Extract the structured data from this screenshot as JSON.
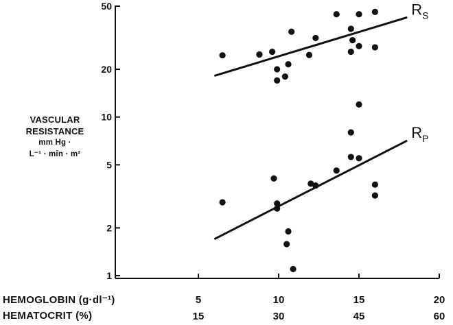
{
  "chart_data": {
    "type": "scatter",
    "title": "",
    "y_axis": {
      "scale": "log",
      "ylim": [
        1,
        50
      ],
      "ticks": [
        1,
        2,
        5,
        10,
        20,
        50
      ],
      "tick_labels": [
        "1",
        "2",
        "5",
        "10",
        "20",
        "50"
      ],
      "label_lines": [
        "VASCULAR",
        "RESISTANCE",
        "mm Hg ·",
        "L⁻¹ · min · m²"
      ]
    },
    "x_axes": [
      {
        "label": "HEMOGLOBIN (g·dl⁻¹)",
        "ticks": [
          5,
          10,
          15,
          20
        ],
        "tick_labels": [
          "5",
          "10",
          "15",
          "20"
        ],
        "xlim": [
          5,
          20
        ]
      },
      {
        "label": "HEMATOCRIT (%)",
        "ticks": [
          15,
          30,
          45,
          60
        ],
        "tick_labels": [
          "15",
          "30",
          "45",
          "60"
        ]
      }
    ],
    "grid": false,
    "series": [
      {
        "name": "Rs",
        "label_main": "R",
        "label_sub": "S",
        "points": [
          [
            6.5,
            24.5
          ],
          [
            8.8,
            24.8
          ],
          [
            9.6,
            25.8
          ],
          [
            9.9,
            20.0
          ],
          [
            9.9,
            17.0
          ],
          [
            10.4,
            18.0
          ],
          [
            10.6,
            21.5
          ],
          [
            10.8,
            34.5
          ],
          [
            11.9,
            24.6
          ],
          [
            12.3,
            31.5
          ],
          [
            13.6,
            44.5
          ],
          [
            14.5,
            36.0
          ],
          [
            14.5,
            25.8
          ],
          [
            14.6,
            30.5
          ],
          [
            15.0,
            44.5
          ],
          [
            15.0,
            28.0
          ],
          [
            16.0,
            46.0
          ],
          [
            16.0,
            27.5
          ]
        ],
        "fit_line": [
          [
            6.0,
            18.2
          ],
          [
            18.0,
            42.5
          ]
        ]
      },
      {
        "name": "Rp",
        "label_main": "R",
        "label_sub": "P",
        "points": [
          [
            6.5,
            2.9
          ],
          [
            9.7,
            4.1
          ],
          [
            9.9,
            2.85
          ],
          [
            9.9,
            2.65
          ],
          [
            10.5,
            1.58
          ],
          [
            10.6,
            1.9
          ],
          [
            10.9,
            1.1
          ],
          [
            12.0,
            3.8
          ],
          [
            12.3,
            3.7
          ],
          [
            13.6,
            4.6
          ],
          [
            14.5,
            8.0
          ],
          [
            14.5,
            5.6
          ],
          [
            15.0,
            12.0
          ],
          [
            15.0,
            5.5
          ],
          [
            16.0,
            3.75
          ],
          [
            16.0,
            3.2
          ]
        ],
        "fit_line": [
          [
            6.0,
            1.7
          ],
          [
            18.0,
            7.1
          ]
        ]
      }
    ]
  },
  "colors": {
    "ink": "#111111",
    "background": "#ffffff"
  }
}
